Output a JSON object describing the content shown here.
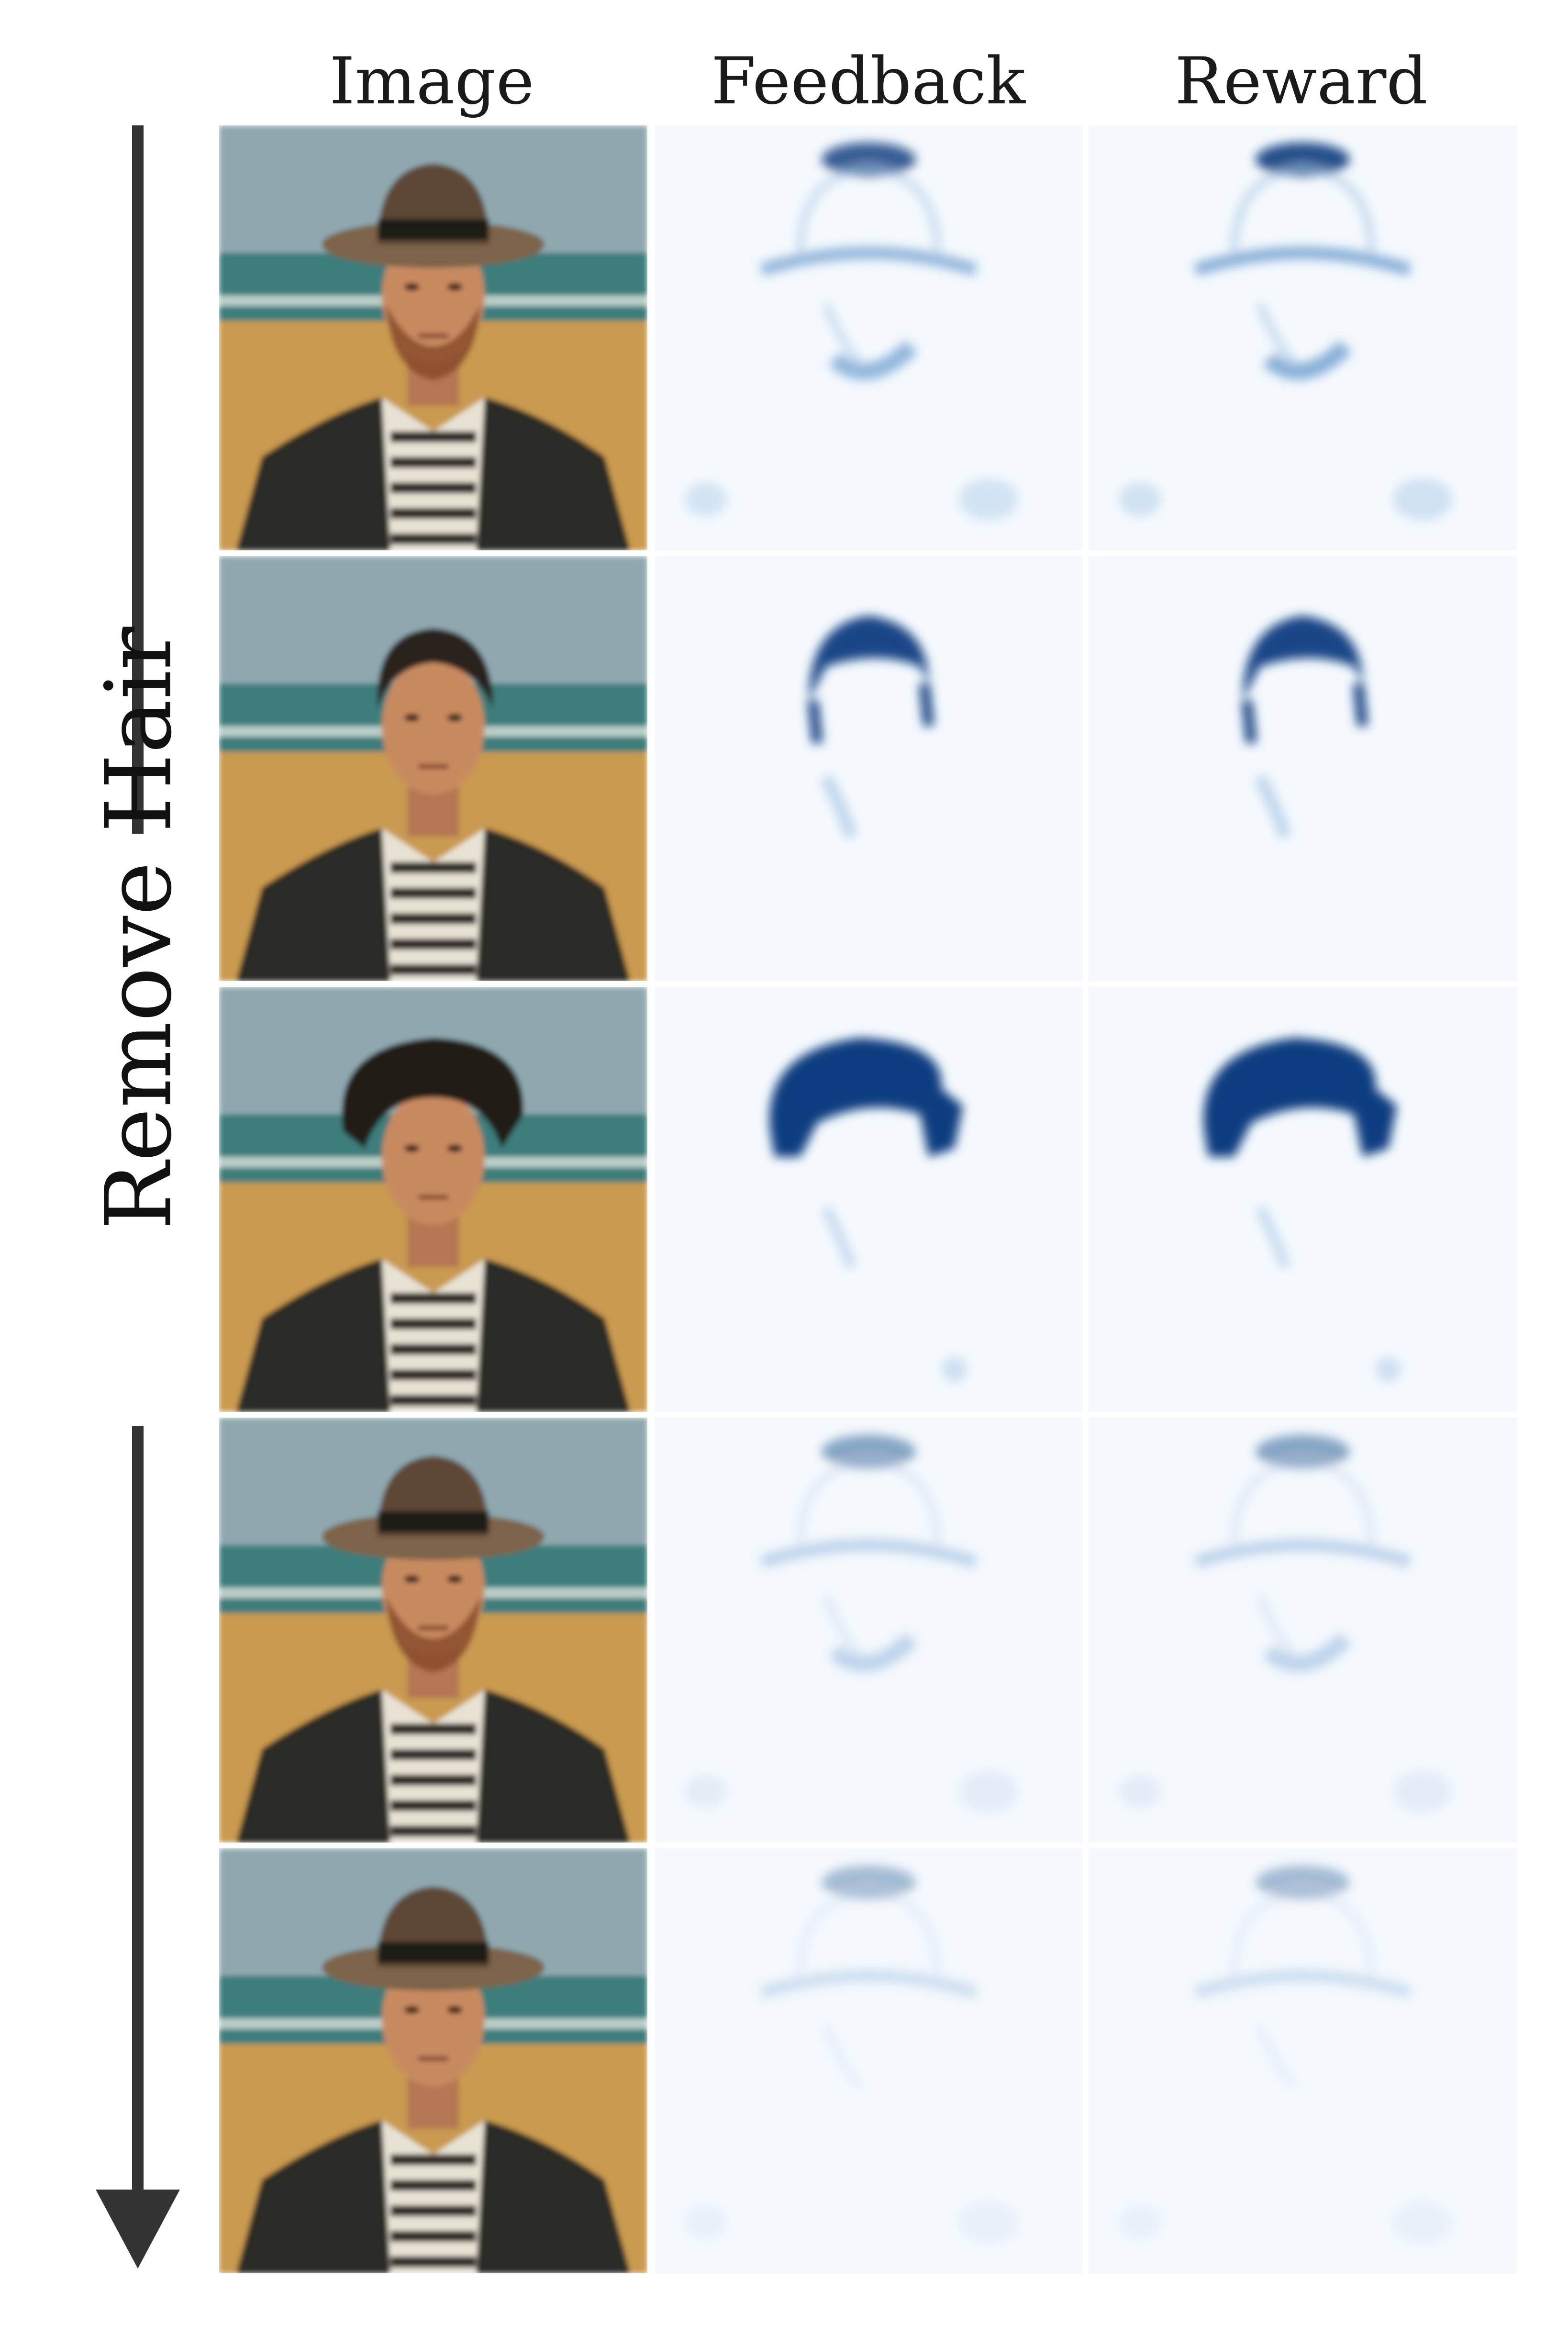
{
  "headers": {
    "image": "Image",
    "feedback": "Feedback",
    "reward": "Reward"
  },
  "side_label": "Remove Hair",
  "colors": {
    "heat_bg": "#f5f9fe",
    "heat_dark": "#0b3d80",
    "heat_mid": "#3f7fc0",
    "heat_light": "#a9c8e6",
    "sky": "#8fa8b0",
    "sea": "#3d7d7c",
    "sand": "#c99a4f",
    "jacket": "#2b2a27",
    "skin": "#c98a61",
    "arrow": "#333333"
  },
  "rows": [
    {
      "subject": "man-with-wide-brim-hat-and-beard",
      "hat": true,
      "hair": "none",
      "beard": true,
      "feedback_intensity": 0.55,
      "reward_intensity": 0.6
    },
    {
      "subject": "man-with-short-hair",
      "hat": false,
      "hair": "short",
      "beard": false,
      "feedback_intensity": 0.95,
      "reward_intensity": 0.95
    },
    {
      "subject": "man-with-voluminous-hair",
      "hat": false,
      "hair": "voluminous",
      "beard": false,
      "feedback_intensity": 1.0,
      "reward_intensity": 1.0
    },
    {
      "subject": "man-with-hat",
      "hat": true,
      "hair": "none",
      "beard": true,
      "feedback_intensity": 0.3,
      "reward_intensity": 0.3
    },
    {
      "subject": "man-with-hat",
      "hat": true,
      "hair": "none",
      "beard": false,
      "feedback_intensity": 0.22,
      "reward_intensity": 0.22
    }
  ]
}
